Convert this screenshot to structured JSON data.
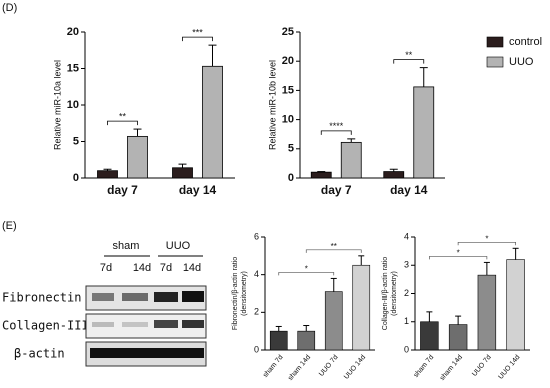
{
  "panel_labels": [
    "(D)",
    "(E)"
  ],
  "blot": {
    "groups": [
      "sham",
      "UUO"
    ],
    "lanes": [
      "7d",
      "14d",
      "7d",
      "14d"
    ],
    "rows": [
      "Fibronectin",
      "Collagen-III",
      "β-actin"
    ]
  },
  "chart_data": [
    {
      "type": "bar",
      "ylabel": "Relative miR-10a level",
      "categories": [
        "day 7",
        "day 14"
      ],
      "series": [
        {
          "name": "control",
          "color": "#2b1d1d",
          "values": [
            1.0,
            1.4
          ],
          "errors": [
            0.2,
            0.5
          ]
        },
        {
          "name": "UUO",
          "color": "#b3b3b3",
          "values": [
            5.7,
            15.3
          ],
          "errors": [
            1.0,
            2.9
          ]
        }
      ],
      "annotations": [
        "**",
        "***"
      ],
      "ylim": [
        0,
        20
      ],
      "yticks": [
        0,
        5,
        10,
        15,
        20
      ]
    },
    {
      "type": "bar",
      "ylabel": "Relative miR-10b level",
      "categories": [
        "day 7",
        "day 14"
      ],
      "series": [
        {
          "name": "control",
          "color": "#2b1d1d",
          "values": [
            1.0,
            1.1
          ],
          "errors": [
            0.1,
            0.4
          ]
        },
        {
          "name": "UUO",
          "color": "#b3b3b3",
          "values": [
            6.1,
            15.6
          ],
          "errors": [
            0.6,
            3.3
          ]
        }
      ],
      "annotations": [
        "****",
        "**"
      ],
      "ylim": [
        0,
        25
      ],
      "yticks": [
        0,
        5,
        10,
        15,
        20,
        25
      ],
      "legend": "right"
    },
    {
      "type": "bar",
      "ylabel": [
        "Fibronectin/β-actin ratio",
        "(densitometry)"
      ],
      "categories": [
        "sham 7d",
        "sham 14d",
        "UUO 7d",
        "UUO 14d"
      ],
      "values": [
        1.0,
        1.0,
        3.1,
        4.5
      ],
      "errors": [
        0.25,
        0.3,
        0.7,
        0.5
      ],
      "colors": [
        "#3a3a3a",
        "#6e6e6e",
        "#8c8c8c",
        "#d2d2d2"
      ],
      "annotations": [
        "*",
        "**"
      ],
      "ylim": [
        0,
        6
      ],
      "yticks": [
        0,
        2,
        4,
        6
      ]
    },
    {
      "type": "bar",
      "ylabel": [
        "Collagen-Ⅲ/β-actin ratio",
        "(densitometry)"
      ],
      "categories": [
        "sham 7d",
        "sham 14d",
        "UUO 7d",
        "UUO 14d"
      ],
      "values": [
        1.0,
        0.9,
        2.65,
        3.2
      ],
      "errors": [
        0.35,
        0.3,
        0.45,
        0.4
      ],
      "colors": [
        "#3a3a3a",
        "#6e6e6e",
        "#8c8c8c",
        "#d2d2d2"
      ],
      "annotations": [
        "*",
        "*"
      ],
      "ylim": [
        0,
        4
      ],
      "yticks": [
        0,
        1,
        2,
        3,
        4
      ]
    }
  ]
}
